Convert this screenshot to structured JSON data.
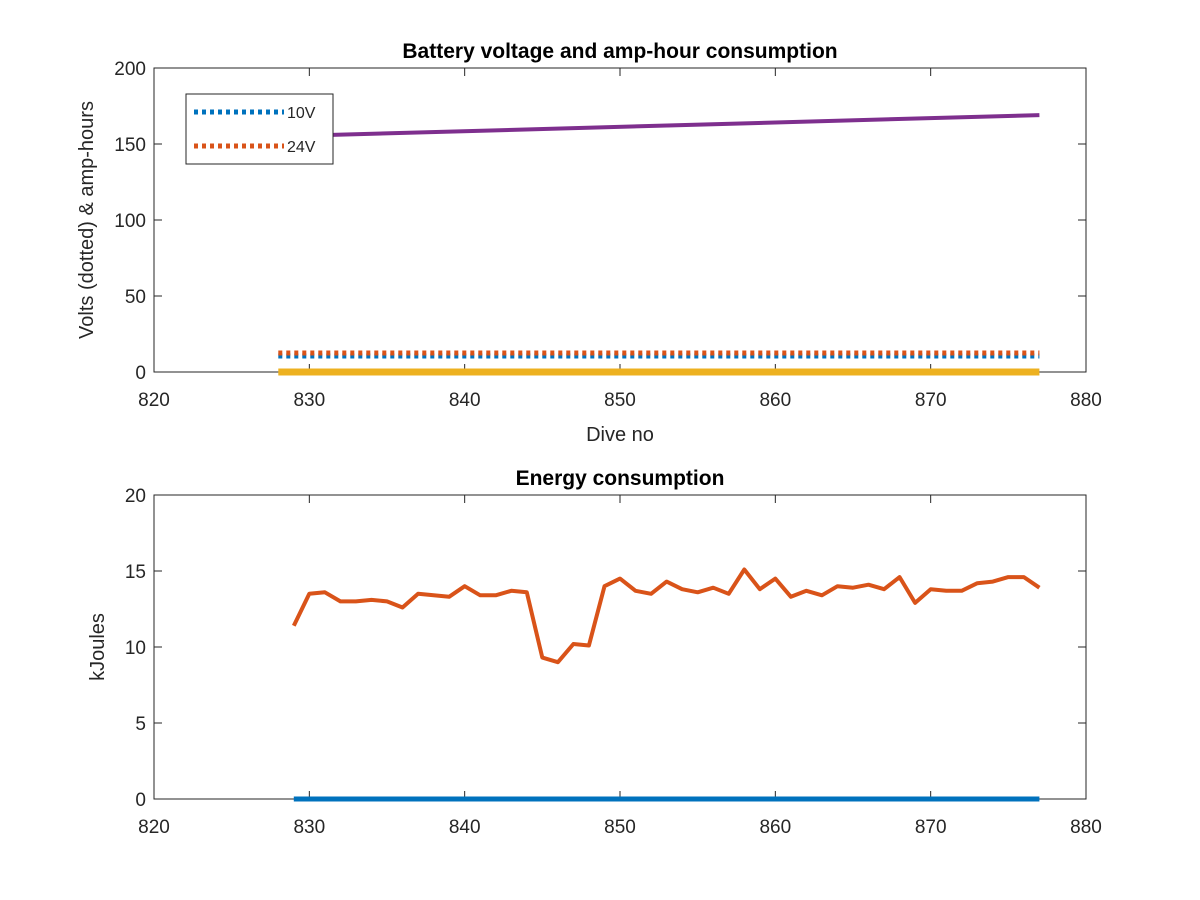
{
  "chart_data": [
    {
      "type": "line",
      "title": "Battery voltage and amp-hour consumption",
      "xlabel": "Dive no",
      "ylabel": "Volts (dotted) & amp-hours",
      "xlim": [
        820,
        880
      ],
      "ylim": [
        0,
        200
      ],
      "xticks": [
        "820",
        "830",
        "840",
        "850",
        "860",
        "870",
        "880"
      ],
      "yticks": [
        "0",
        "50",
        "100",
        "150",
        "200"
      ],
      "legend_position": "top-left",
      "legend": [
        "10V",
        "24V"
      ],
      "series": [
        {
          "name": "10V",
          "style": "dotted",
          "color": "#0072BD",
          "x": [
            828,
            877
          ],
          "y": [
            10.5,
            10.5
          ]
        },
        {
          "name": "24V",
          "style": "dotted",
          "color": "#D95319",
          "x": [
            828,
            877
          ],
          "y": [
            12.5,
            12.5
          ]
        },
        {
          "style": "solid",
          "color": "#EDB120",
          "x": [
            828,
            877
          ],
          "y": [
            0,
            0
          ]
        },
        {
          "style": "solid",
          "color": "#7E2F8E",
          "x": [
            828,
            877
          ],
          "y": [
            155,
            169
          ]
        }
      ]
    },
    {
      "type": "line",
      "title": "Energy consumption",
      "xlabel": "",
      "ylabel": "kJoules",
      "xlim": [
        820,
        880
      ],
      "ylim": [
        0,
        20
      ],
      "xticks": [
        "820",
        "830",
        "840",
        "850",
        "860",
        "870",
        "880"
      ],
      "yticks": [
        "0",
        "5",
        "10",
        "15",
        "20"
      ],
      "series": [
        {
          "style": "solid",
          "color": "#0072BD",
          "x": [
            829,
            877
          ],
          "y": [
            0,
            0
          ]
        },
        {
          "style": "solid",
          "color": "#D95319",
          "x": [
            829,
            830,
            831,
            832,
            833,
            834,
            835,
            836,
            837,
            838,
            839,
            840,
            841,
            842,
            843,
            844,
            845,
            846,
            847,
            848,
            849,
            850,
            851,
            852,
            853,
            854,
            855,
            856,
            857,
            858,
            859,
            860,
            861,
            862,
            863,
            864,
            865,
            866,
            867,
            868,
            869,
            870,
            871,
            872,
            873,
            874,
            875,
            876,
            877
          ],
          "y": [
            11.4,
            13.5,
            13.6,
            13.0,
            13.0,
            13.1,
            13.0,
            12.6,
            13.5,
            13.4,
            13.3,
            14.0,
            13.4,
            13.4,
            13.7,
            13.6,
            9.3,
            9.0,
            10.2,
            10.1,
            14.0,
            14.5,
            13.7,
            13.5,
            14.3,
            13.8,
            13.6,
            13.9,
            13.5,
            15.1,
            13.8,
            14.5,
            13.3,
            13.7,
            13.4,
            14.0,
            13.9,
            14.1,
            13.8,
            14.6,
            12.9,
            13.8,
            13.7,
            13.7,
            14.2,
            14.3,
            14.6,
            14.6,
            13.9
          ]
        }
      ]
    }
  ]
}
